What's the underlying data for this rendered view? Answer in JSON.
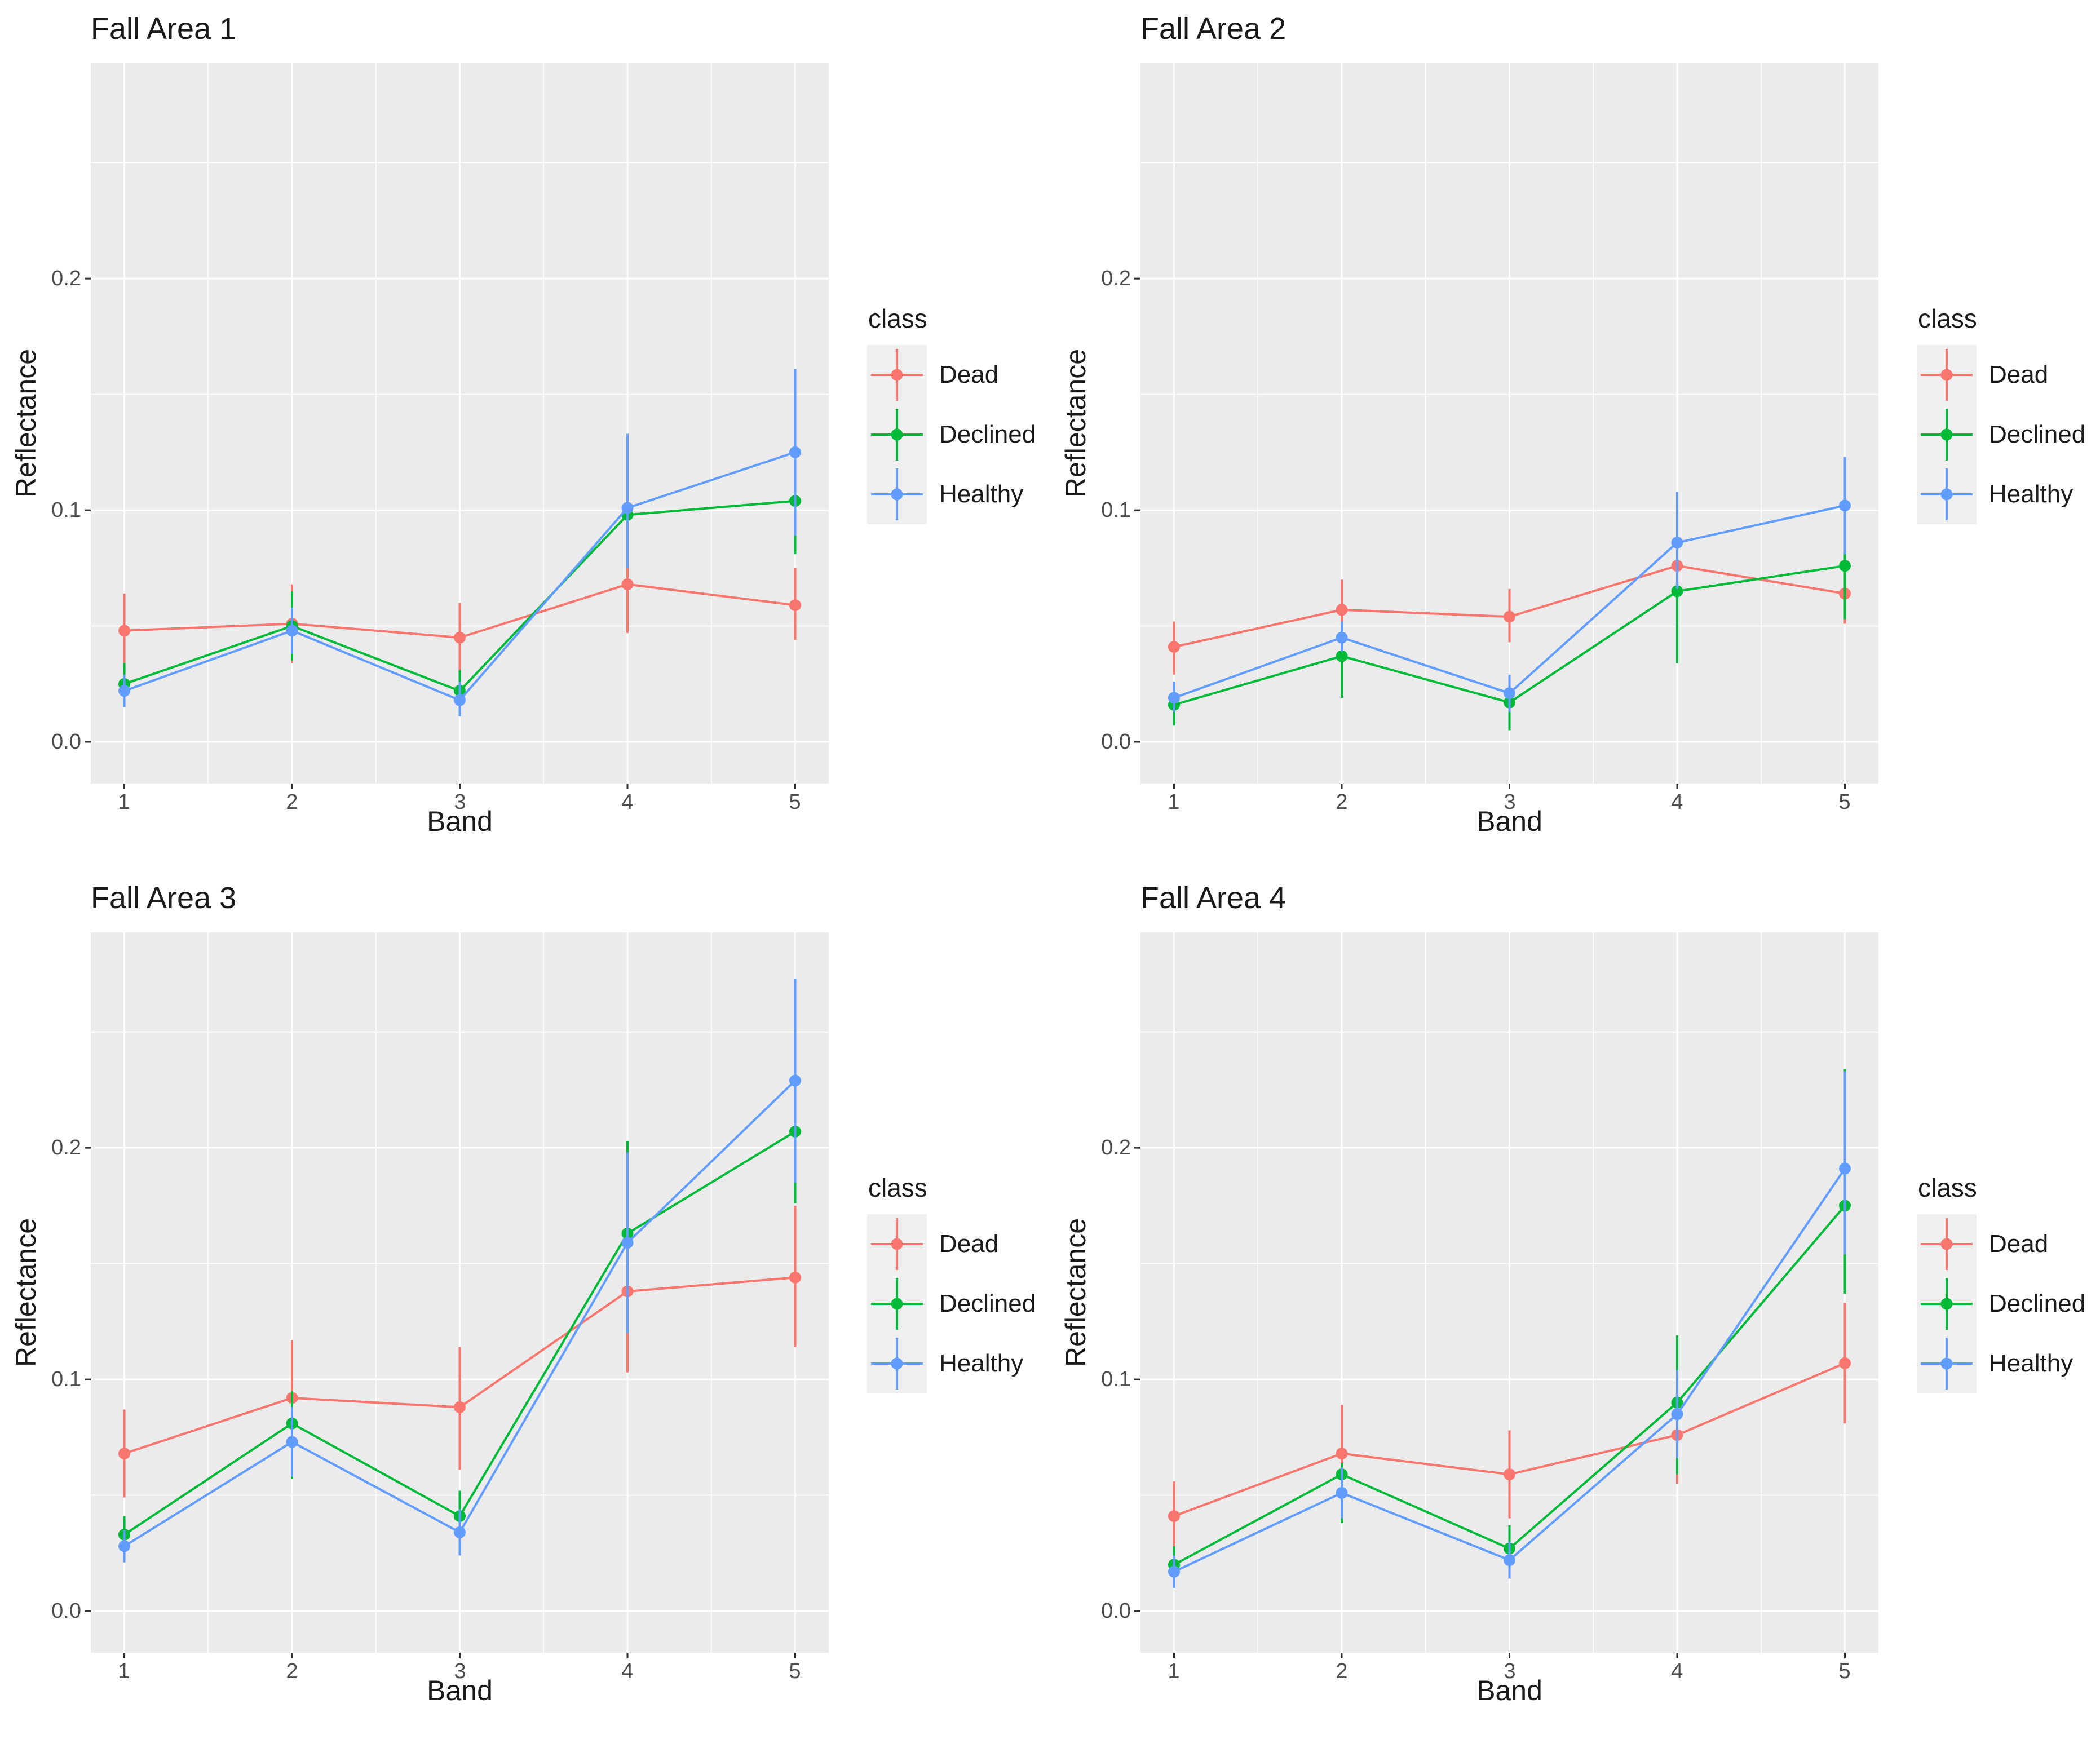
{
  "axis": {
    "yticks": [
      "0.0",
      "0.1",
      "0.2"
    ],
    "xticks": [
      "1",
      "2",
      "3",
      "4",
      "5"
    ]
  },
  "colors": {
    "plot_background": "#EBEBEB",
    "gridline": "#FFFFFF",
    "tick_mark": "#333333",
    "legend_key_background": "#EFEFEF",
    "dead": "#F8766D",
    "declined": "#00BA38",
    "healthy": "#619CFF"
  },
  "chart_data": [
    {
      "type": "line",
      "title": "Fall Area 1",
      "xlabel": "Band",
      "ylabel": "Reflectance",
      "legend_title": "class",
      "legend_position": "right",
      "grid": true,
      "x": [
        1,
        2,
        3,
        4,
        5
      ],
      "xlim": [
        0.8,
        5.2
      ],
      "ylim": [
        -0.018,
        0.293
      ],
      "ytick_values": [
        0.0,
        0.1,
        0.2
      ],
      "yminor_values": [
        0.05,
        0.15,
        0.25
      ],
      "xminor_values": [
        1.5,
        2.5,
        3.5,
        4.5
      ],
      "series": [
        {
          "name": "Dead",
          "color": "#F8766D",
          "values": [
            0.048,
            0.051,
            0.045,
            0.068,
            0.059
          ],
          "err_low": [
            0.032,
            0.034,
            0.03,
            0.047,
            0.044
          ],
          "err_high": [
            0.064,
            0.068,
            0.06,
            0.09,
            0.075
          ]
        },
        {
          "name": "Declined",
          "color": "#00BA38",
          "values": [
            0.025,
            0.05,
            0.022,
            0.098,
            0.104
          ],
          "err_low": [
            0.017,
            0.035,
            0.013,
            0.08,
            0.081
          ],
          "err_high": [
            0.034,
            0.065,
            0.031,
            0.12,
            0.128
          ]
        },
        {
          "name": "Healthy",
          "color": "#619CFF",
          "values": [
            0.022,
            0.048,
            0.018,
            0.101,
            0.125
          ],
          "err_low": [
            0.015,
            0.038,
            0.011,
            0.075,
            0.089
          ],
          "err_high": [
            0.029,
            0.058,
            0.026,
            0.133,
            0.161
          ]
        }
      ]
    },
    {
      "type": "line",
      "title": "Fall Area 2",
      "xlabel": "Band",
      "ylabel": "Reflectance",
      "legend_title": "class",
      "legend_position": "right",
      "grid": true,
      "x": [
        1,
        2,
        3,
        4,
        5
      ],
      "xlim": [
        0.8,
        5.2
      ],
      "ylim": [
        -0.018,
        0.293
      ],
      "ytick_values": [
        0.0,
        0.1,
        0.2
      ],
      "yminor_values": [
        0.05,
        0.15,
        0.25
      ],
      "xminor_values": [
        1.5,
        2.5,
        3.5,
        4.5
      ],
      "series": [
        {
          "name": "Dead",
          "color": "#F8766D",
          "values": [
            0.041,
            0.057,
            0.054,
            0.076,
            0.064
          ],
          "err_low": [
            0.029,
            0.045,
            0.043,
            0.058,
            0.051
          ],
          "err_high": [
            0.052,
            0.07,
            0.066,
            0.096,
            0.073
          ]
        },
        {
          "name": "Declined",
          "color": "#00BA38",
          "values": [
            0.016,
            0.037,
            0.017,
            0.065,
            0.076
          ],
          "err_low": [
            0.007,
            0.019,
            0.005,
            0.034,
            0.053
          ],
          "err_high": [
            0.025,
            0.047,
            0.028,
            0.096,
            0.099
          ]
        },
        {
          "name": "Healthy",
          "color": "#619CFF",
          "values": [
            0.019,
            0.045,
            0.021,
            0.086,
            0.102
          ],
          "err_low": [
            0.013,
            0.039,
            0.013,
            0.066,
            0.081
          ],
          "err_high": [
            0.026,
            0.052,
            0.029,
            0.108,
            0.123
          ]
        }
      ]
    },
    {
      "type": "line",
      "title": "Fall Area 3",
      "xlabel": "Band",
      "ylabel": "Reflectance",
      "legend_title": "class",
      "legend_position": "right",
      "grid": true,
      "x": [
        1,
        2,
        3,
        4,
        5
      ],
      "xlim": [
        0.8,
        5.2
      ],
      "ylim": [
        -0.018,
        0.293
      ],
      "ytick_values": [
        0.0,
        0.1,
        0.2
      ],
      "yminor_values": [
        0.05,
        0.15,
        0.25
      ],
      "xminor_values": [
        1.5,
        2.5,
        3.5,
        4.5
      ],
      "series": [
        {
          "name": "Dead",
          "color": "#F8766D",
          "values": [
            0.068,
            0.092,
            0.088,
            0.138,
            0.144
          ],
          "err_low": [
            0.049,
            0.066,
            0.061,
            0.103,
            0.114
          ],
          "err_high": [
            0.087,
            0.117,
            0.114,
            0.173,
            0.175
          ]
        },
        {
          "name": "Declined",
          "color": "#00BA38",
          "values": [
            0.033,
            0.081,
            0.041,
            0.163,
            0.207
          ],
          "err_low": [
            0.026,
            0.057,
            0.026,
            0.123,
            0.176
          ],
          "err_high": [
            0.041,
            0.095,
            0.052,
            0.203,
            0.249
          ]
        },
        {
          "name": "Healthy",
          "color": "#619CFF",
          "values": [
            0.028,
            0.073,
            0.034,
            0.159,
            0.229
          ],
          "err_low": [
            0.021,
            0.058,
            0.024,
            0.12,
            0.185
          ],
          "err_high": [
            0.035,
            0.088,
            0.044,
            0.198,
            0.273
          ]
        }
      ]
    },
    {
      "type": "line",
      "title": "Fall Area 4",
      "xlabel": "Band",
      "ylabel": "Reflectance",
      "legend_title": "class",
      "legend_position": "right",
      "grid": true,
      "x": [
        1,
        2,
        3,
        4,
        5
      ],
      "xlim": [
        0.8,
        5.2
      ],
      "ylim": [
        -0.018,
        0.293
      ],
      "ytick_values": [
        0.0,
        0.1,
        0.2
      ],
      "yminor_values": [
        0.05,
        0.15,
        0.25
      ],
      "xminor_values": [
        1.5,
        2.5,
        3.5,
        4.5
      ],
      "series": [
        {
          "name": "Dead",
          "color": "#F8766D",
          "values": [
            0.041,
            0.068,
            0.059,
            0.076,
            0.107
          ],
          "err_low": [
            0.026,
            0.047,
            0.04,
            0.055,
            0.081
          ],
          "err_high": [
            0.056,
            0.089,
            0.078,
            0.097,
            0.133
          ]
        },
        {
          "name": "Declined",
          "color": "#00BA38",
          "values": [
            0.02,
            0.059,
            0.027,
            0.09,
            0.175
          ],
          "err_low": [
            0.012,
            0.038,
            0.015,
            0.059,
            0.137
          ],
          "err_high": [
            0.028,
            0.064,
            0.037,
            0.119,
            0.234
          ]
        },
        {
          "name": "Healthy",
          "color": "#619CFF",
          "values": [
            0.017,
            0.051,
            0.022,
            0.085,
            0.191
          ],
          "err_low": [
            0.01,
            0.04,
            0.014,
            0.066,
            0.154
          ],
          "err_high": [
            0.024,
            0.062,
            0.03,
            0.104,
            0.233
          ]
        }
      ]
    }
  ]
}
